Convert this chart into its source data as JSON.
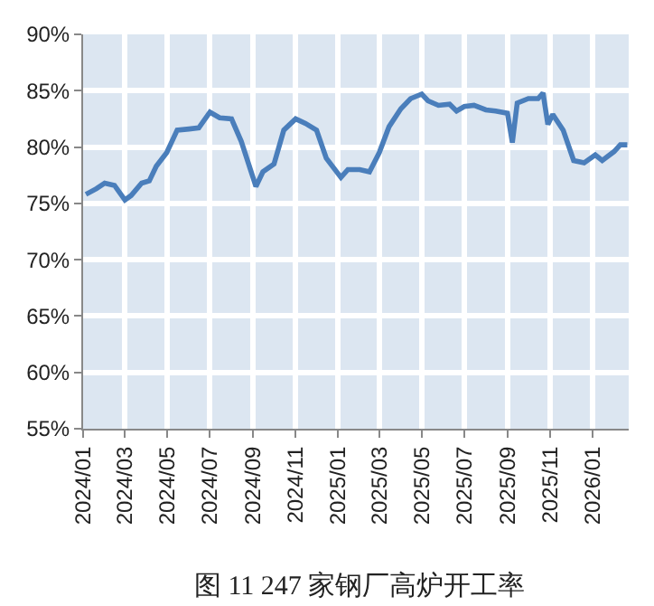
{
  "chart_data": {
    "type": "line",
    "title": "图 11 247 家钢厂高炉开工率",
    "x": [
      "2024-01-05",
      "2024-01-20",
      "2024-02-01",
      "2024-02-15",
      "2024-03-01",
      "2024-03-10",
      "2024-03-25",
      "2024-04-05",
      "2024-04-15",
      "2024-04-30",
      "2024-05-15",
      "2024-06-01",
      "2024-06-15",
      "2024-07-01",
      "2024-07-15",
      "2024-08-01",
      "2024-08-15",
      "2024-09-05",
      "2024-09-15",
      "2024-10-01",
      "2024-10-15",
      "2024-11-01",
      "2024-11-15",
      "2024-12-01",
      "2024-12-15",
      "2025-01-05",
      "2025-01-15",
      "2025-02-01",
      "2025-02-15",
      "2025-03-01",
      "2025-03-15",
      "2025-04-01",
      "2025-04-15",
      "2025-05-01",
      "2025-05-10",
      "2025-05-25",
      "2025-06-10",
      "2025-06-20",
      "2025-07-01",
      "2025-07-15",
      "2025-08-01",
      "2025-08-15",
      "2025-09-01",
      "2025-09-08",
      "2025-09-15",
      "2025-10-01",
      "2025-10-15",
      "2025-10-22",
      "2025-10-29",
      "2025-11-05",
      "2025-11-20",
      "2025-12-05",
      "2025-12-20",
      "2026-01-05",
      "2026-01-15",
      "2026-02-01",
      "2026-02-10",
      "2026-02-20"
    ],
    "series": [
      {
        "color": "#4a7ebb",
        "values": [
          75.8,
          76.3,
          76.8,
          76.6,
          75.3,
          75.7,
          76.8,
          77,
          78.3,
          79.5,
          81.5,
          81.6,
          81.7,
          83.1,
          82.6,
          82.5,
          80.5,
          76.5,
          77.8,
          78.5,
          81.5,
          82.5,
          82.1,
          81.5,
          79,
          77.3,
          78,
          78,
          77.8,
          79.5,
          81.8,
          83.4,
          84.3,
          84.7,
          84.1,
          83.7,
          83.8,
          83.2,
          83.6,
          83.7,
          83.3,
          83.2,
          83,
          80.4,
          83.9,
          84.3,
          84.3,
          84.8,
          82,
          82.9,
          81.5,
          78.8,
          78.6,
          79.3,
          78.8,
          79.6,
          80.2,
          80.2
        ]
      }
    ],
    "xlim": [
      "2024-01-01",
      "2026-02-22"
    ],
    "xticks": [
      {
        "value": "2024-01-01",
        "label": "2024/01"
      },
      {
        "value": "2024-03-01",
        "label": "2024/03"
      },
      {
        "value": "2024-05-01",
        "label": "2024/05"
      },
      {
        "value": "2024-07-01",
        "label": "2024/07"
      },
      {
        "value": "2024-09-01",
        "label": "2024/09"
      },
      {
        "value": "2024-11-01",
        "label": "2024/11"
      },
      {
        "value": "2025-01-01",
        "label": "2025/01"
      },
      {
        "value": "2025-03-01",
        "label": "2025/03"
      },
      {
        "value": "2025-05-01",
        "label": "2025/05"
      },
      {
        "value": "2025-07-01",
        "label": "2025/07"
      },
      {
        "value": "2025-09-01",
        "label": "2025/09"
      },
      {
        "value": "2025-11-01",
        "label": "2025/11"
      },
      {
        "value": "2026-01-01",
        "label": "2026/01"
      }
    ],
    "ylim": [
      55,
      90
    ],
    "yticks": [
      {
        "value": 55,
        "label": "55%"
      },
      {
        "value": 60,
        "label": "60%"
      },
      {
        "value": 65,
        "label": "65%"
      },
      {
        "value": 70,
        "label": "70%"
      },
      {
        "value": 75,
        "label": "75%"
      },
      {
        "value": 80,
        "label": "80%"
      },
      {
        "value": 85,
        "label": "85%"
      },
      {
        "value": 90,
        "label": "90%"
      }
    ],
    "grid": true,
    "marker": "none",
    "line_style": "solid"
  }
}
